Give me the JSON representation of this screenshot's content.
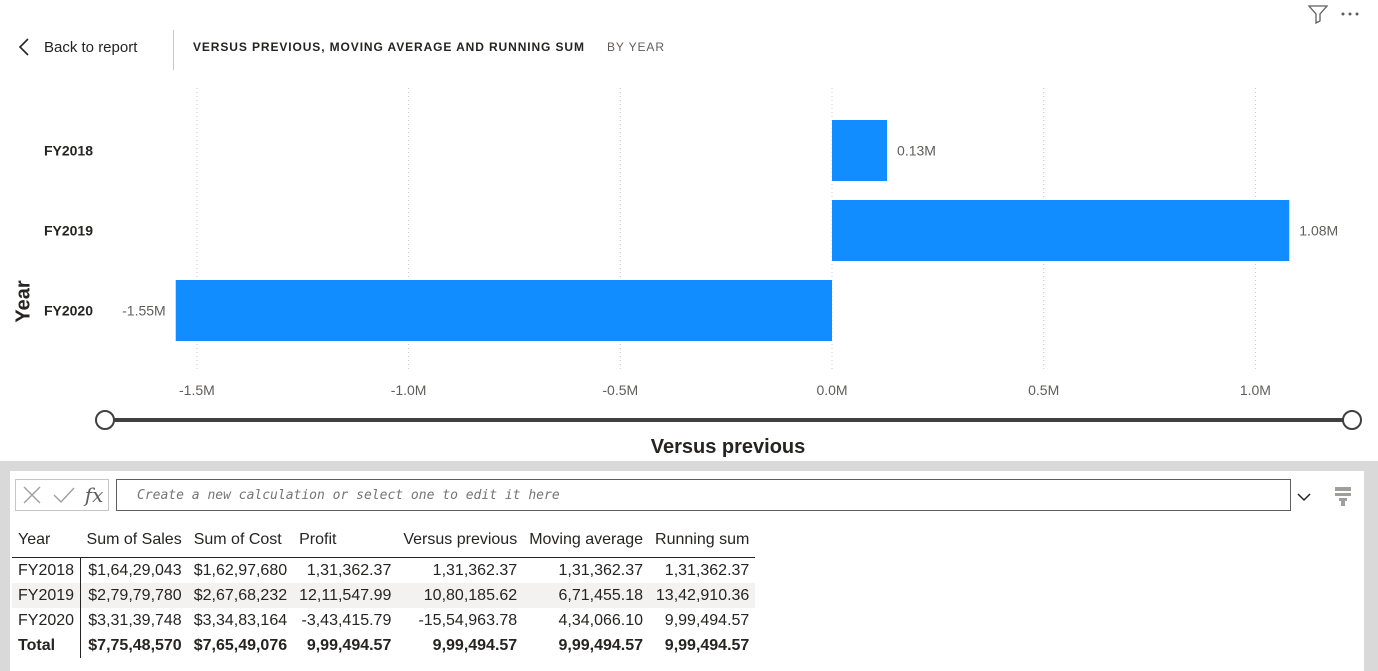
{
  "header": {
    "back_label": "Back to report",
    "title": "VERSUS PREVIOUS, MOVING AVERAGE AND RUNNING SUM",
    "subtitle": "BY YEAR"
  },
  "icons": {
    "back": "chevron-left-icon",
    "filter": "filter-icon",
    "more": "more-options-icon",
    "cancel": "close-icon",
    "commit": "check-icon",
    "fx": "fx-icon",
    "expand": "chevron-down-icon",
    "format": "format-painter-icon"
  },
  "colors": {
    "bar": "#118DFF",
    "axis": "#605e5c",
    "slider": "#404040"
  },
  "chart_data": {
    "type": "bar",
    "orientation": "horizontal",
    "categories": [
      "FY2018",
      "FY2019",
      "FY2020"
    ],
    "values": [
      0.13,
      1.08,
      -1.55
    ],
    "data_labels": [
      "0.13M",
      "1.08M",
      "-1.55M"
    ],
    "xlabel": "Versus previous",
    "ylabel": "Year",
    "xlim": [
      -1.65,
      1.2
    ],
    "xticks": [
      -1.5,
      -1.0,
      -0.5,
      0.0,
      0.5,
      1.0
    ],
    "xtick_labels": [
      "-1.5M",
      "-1.0M",
      "-0.5M",
      "0.0M",
      "0.5M",
      "1.0M"
    ],
    "grid": true
  },
  "calc": {
    "placeholder": "Create a new calculation or select one to edit it here",
    "fx_label": "fx"
  },
  "table": {
    "columns": [
      "Year",
      "Sum of Sales",
      "Sum of Cost",
      "Profit",
      "Versus previous",
      "Moving average",
      "Running sum"
    ],
    "rows": [
      [
        "FY2018",
        "$1,64,29,043",
        "$1,62,97,680",
        "1,31,362.37",
        "1,31,362.37",
        "1,31,362.37",
        "1,31,362.37"
      ],
      [
        "FY2019",
        "$2,79,79,780",
        "$2,67,68,232",
        "12,11,547.99",
        "10,80,185.62",
        "6,71,455.18",
        "13,42,910.36"
      ],
      [
        "FY2020",
        "$3,31,39,748",
        "$3,34,83,164",
        "-3,43,415.79",
        "-15,54,963.78",
        "4,34,066.10",
        "9,99,494.57"
      ]
    ],
    "total": [
      "Total",
      "$7,75,48,570",
      "$7,65,49,076",
      "9,99,494.57",
      "9,99,494.57",
      "9,99,494.57",
      "9,99,494.57"
    ]
  }
}
